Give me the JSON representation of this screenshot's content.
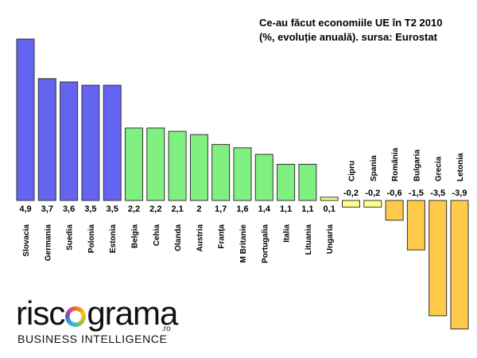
{
  "chart_data": {
    "type": "bar",
    "title_lines": [
      "Ce-au făcut economiile UE în T2 2010",
      "(%, evoluție anuală). sursa: Eurostat"
    ],
    "categories": [
      "Slovacia",
      "Germania",
      "Suedia",
      "Polonia",
      "Estonia",
      "Belgia",
      "Cehia",
      "Olanda",
      "Austria",
      "Franța",
      "M Britanie",
      "Portugalia",
      "Italia",
      "Lituania",
      "Ungaria",
      "Cipru",
      "Spania",
      "România",
      "Bulgaria",
      "Grecia",
      "Letonia"
    ],
    "values": [
      4.9,
      3.7,
      3.6,
      3.5,
      3.5,
      2.2,
      2.2,
      2.1,
      2,
      1.7,
      1.6,
      1.4,
      1.1,
      1.1,
      0.1,
      -0.2,
      -0.2,
      -0.6,
      -1.5,
      -3.5,
      -3.9
    ],
    "value_labels": [
      "4,9",
      "3,7",
      "3,6",
      "3,5",
      "3,5",
      "2,2",
      "2,2",
      "2,1",
      "2",
      "1,7",
      "1,6",
      "1,4",
      "1,1",
      "1,1",
      "0,1",
      "-0,2",
      "-0,2",
      "-0,6",
      "-1,5",
      "-3,5",
      "-3,9"
    ],
    "group_colors": {
      "high": "#6464f0",
      "mid": "#80f080",
      "low": "#ffff88",
      "negative": "#ffc94a"
    },
    "bar_groups": [
      "high",
      "high",
      "high",
      "high",
      "high",
      "mid",
      "mid",
      "mid",
      "mid",
      "mid",
      "mid",
      "mid",
      "mid",
      "mid",
      "low",
      "low",
      "low",
      "negative",
      "negative",
      "negative",
      "negative"
    ],
    "xlabel": "",
    "ylabel": "",
    "grid": false,
    "legend": "none"
  },
  "logo": {
    "word_left": "risc",
    "word_right": "grama",
    "suffix": ".ro",
    "tagline": "BUSINESS INTELLIGENCE"
  }
}
